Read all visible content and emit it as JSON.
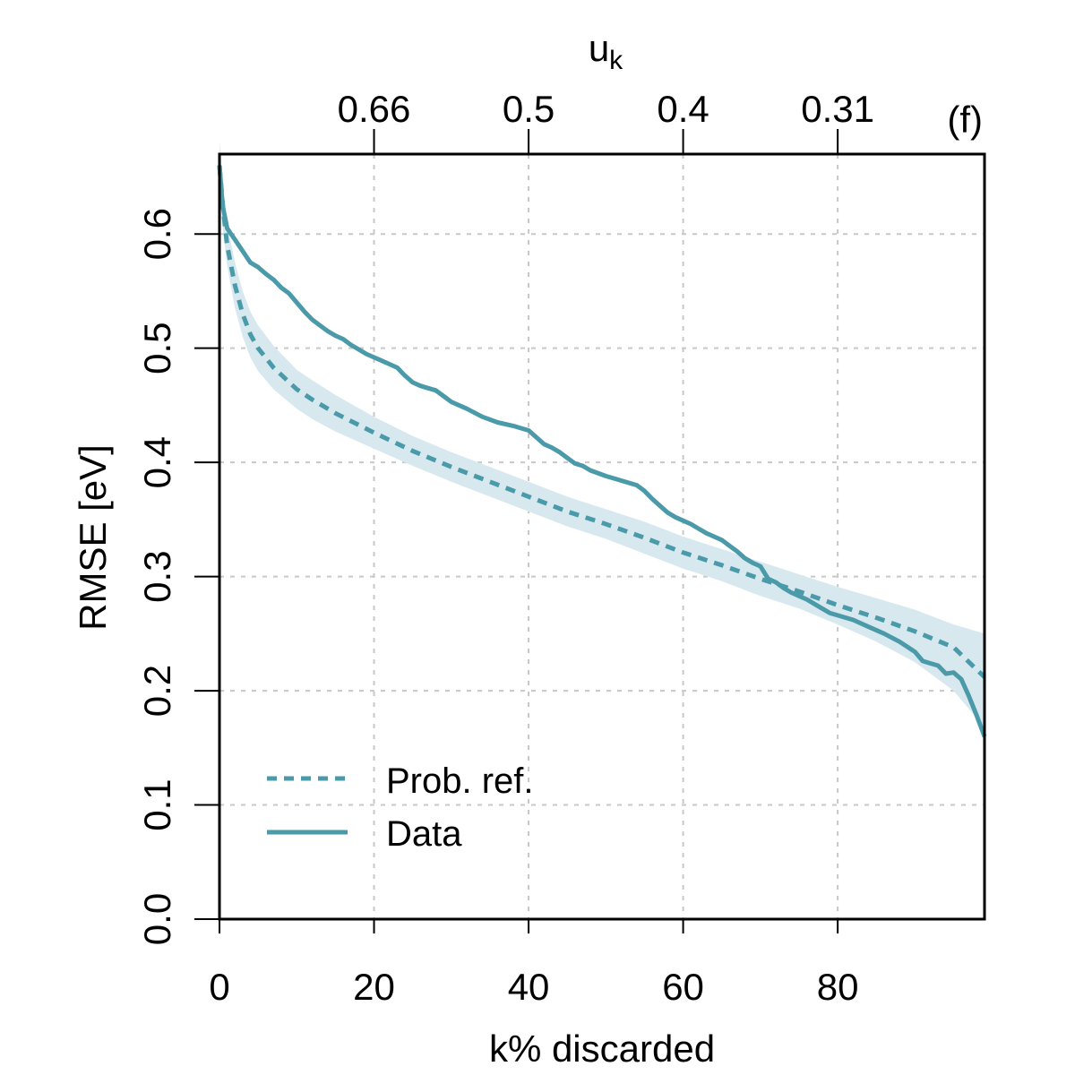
{
  "chart_data": {
    "type": "line",
    "panel_label": "(f)",
    "xlabel": "k% discarded",
    "ylabel": "RMSE [eV]",
    "top_axis_label": "u",
    "top_axis_label_sub": "k",
    "xlim": [
      0,
      99
    ],
    "ylim": [
      0,
      0.67
    ],
    "x_ticks": [
      {
        "value": 0,
        "label": "0"
      },
      {
        "value": 20,
        "label": "20"
      },
      {
        "value": 40,
        "label": "40"
      },
      {
        "value": 60,
        "label": "60"
      },
      {
        "value": 80,
        "label": "80"
      }
    ],
    "y_ticks": [
      {
        "value": 0.0,
        "label": "0.0"
      },
      {
        "value": 0.1,
        "label": "0.1"
      },
      {
        "value": 0.2,
        "label": "0.2"
      },
      {
        "value": 0.3,
        "label": "0.3"
      },
      {
        "value": 0.4,
        "label": "0.4"
      },
      {
        "value": 0.5,
        "label": "0.5"
      },
      {
        "value": 0.6,
        "label": "0.6"
      }
    ],
    "top_ticks": [
      {
        "x": 20,
        "label": "0.66"
      },
      {
        "x": 40,
        "label": "0.5"
      },
      {
        "x": 60,
        "label": "0.4"
      },
      {
        "x": 80,
        "label": "0.31"
      }
    ],
    "grid": true,
    "legend_position": "bottom-left",
    "colors": {
      "series": "#4a9aaa",
      "band": "#d7e9ee",
      "grid": "#c8c8c8",
      "frame": "#000000"
    },
    "series": [
      {
        "name": "Prob. ref.",
        "style": "dashed",
        "x": [
          0,
          0.5,
          1,
          2,
          3,
          4,
          5,
          7,
          10,
          12,
          15,
          20,
          25,
          30,
          35,
          40,
          45,
          50,
          55,
          60,
          65,
          70,
          75,
          80,
          85,
          90,
          95,
          99
        ],
        "values": [
          0.66,
          0.62,
          0.59,
          0.555,
          0.53,
          0.512,
          0.5,
          0.483,
          0.464,
          0.455,
          0.443,
          0.426,
          0.41,
          0.396,
          0.383,
          0.37,
          0.357,
          0.346,
          0.334,
          0.321,
          0.31,
          0.298,
          0.287,
          0.275,
          0.264,
          0.252,
          0.238,
          0.212
        ],
        "band_lower": [
          0.64,
          0.6,
          0.572,
          0.535,
          0.51,
          0.492,
          0.48,
          0.464,
          0.447,
          0.438,
          0.427,
          0.412,
          0.397,
          0.383,
          0.37,
          0.357,
          0.344,
          0.333,
          0.32,
          0.307,
          0.296,
          0.283,
          0.272,
          0.258,
          0.243,
          0.225,
          0.2,
          0.168
        ],
        "band_upper": [
          0.68,
          0.64,
          0.608,
          0.575,
          0.55,
          0.532,
          0.52,
          0.502,
          0.481,
          0.472,
          0.459,
          0.44,
          0.423,
          0.409,
          0.396,
          0.383,
          0.37,
          0.359,
          0.348,
          0.335,
          0.324,
          0.313,
          0.302,
          0.291,
          0.281,
          0.271,
          0.258,
          0.25
        ]
      },
      {
        "name": "Data",
        "style": "solid",
        "x": [
          0,
          0.4,
          1,
          2,
          3,
          4,
          5,
          6,
          7,
          8,
          9,
          10,
          11,
          12,
          13,
          14,
          15,
          16,
          17,
          18,
          19,
          20,
          21,
          22,
          23,
          24,
          25,
          26,
          27,
          28,
          29,
          30,
          32,
          34,
          36,
          38,
          40,
          41,
          42,
          43,
          44,
          45,
          46,
          47,
          48,
          50,
          52,
          54,
          55,
          56,
          57,
          58,
          59,
          60,
          61,
          62,
          63,
          64,
          65,
          66,
          67,
          68,
          69,
          70,
          71,
          72,
          73,
          74,
          75,
          76,
          77,
          78,
          79,
          80,
          82,
          84,
          86,
          88,
          90,
          91,
          92,
          93,
          94,
          95,
          96,
          97,
          98,
          99
        ],
        "values": [
          0.66,
          0.625,
          0.605,
          0.595,
          0.585,
          0.575,
          0.571,
          0.565,
          0.56,
          0.553,
          0.548,
          0.54,
          0.532,
          0.525,
          0.52,
          0.515,
          0.511,
          0.508,
          0.503,
          0.499,
          0.495,
          0.492,
          0.489,
          0.486,
          0.483,
          0.476,
          0.47,
          0.467,
          0.465,
          0.463,
          0.458,
          0.453,
          0.447,
          0.44,
          0.435,
          0.432,
          0.428,
          0.422,
          0.416,
          0.413,
          0.409,
          0.404,
          0.399,
          0.397,
          0.393,
          0.388,
          0.384,
          0.38,
          0.375,
          0.368,
          0.362,
          0.356,
          0.352,
          0.349,
          0.346,
          0.342,
          0.338,
          0.335,
          0.332,
          0.327,
          0.322,
          0.316,
          0.312,
          0.309,
          0.298,
          0.295,
          0.29,
          0.286,
          0.283,
          0.28,
          0.276,
          0.272,
          0.268,
          0.266,
          0.262,
          0.256,
          0.25,
          0.243,
          0.234,
          0.226,
          0.224,
          0.222,
          0.215,
          0.216,
          0.21,
          0.195,
          0.178,
          0.16
        ]
      }
    ]
  }
}
